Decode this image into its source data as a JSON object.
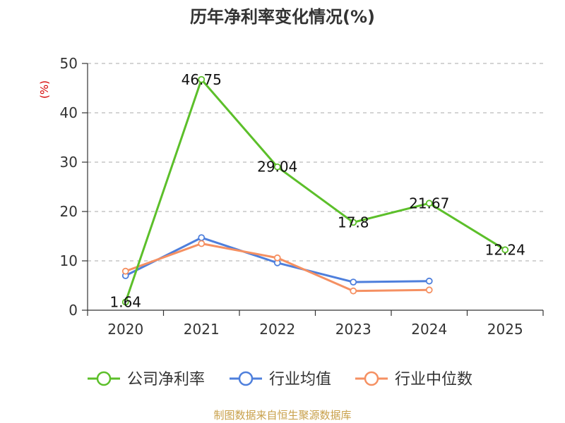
{
  "chart_data": {
    "type": "line",
    "title": "历年净利率变化情况(%)",
    "ylabel": "(%)",
    "ylim": [
      0,
      50
    ],
    "yticks": [
      0,
      10,
      20,
      30,
      40,
      50
    ],
    "x": [
      "2020",
      "2021",
      "2022",
      "2023",
      "2024",
      "2025"
    ],
    "grid": true,
    "legend_position": "bottom",
    "series": [
      {
        "name": "公司净利率",
        "color": "#5cbf2a",
        "values": [
          1.64,
          46.75,
          29.04,
          17.8,
          21.67,
          12.24
        ],
        "labels": [
          "1.64",
          "46.75",
          "29.04",
          "17.8",
          "21.67",
          "12.24"
        ]
      },
      {
        "name": "行业均值",
        "color": "#4e7fdc",
        "values": [
          7.0,
          14.7,
          9.6,
          5.7,
          5.9,
          null
        ]
      },
      {
        "name": "行业中位数",
        "color": "#f59062",
        "values": [
          7.9,
          13.5,
          10.6,
          3.9,
          4.1,
          null
        ]
      }
    ],
    "source": "制图数据来自恒生聚源数据库"
  }
}
